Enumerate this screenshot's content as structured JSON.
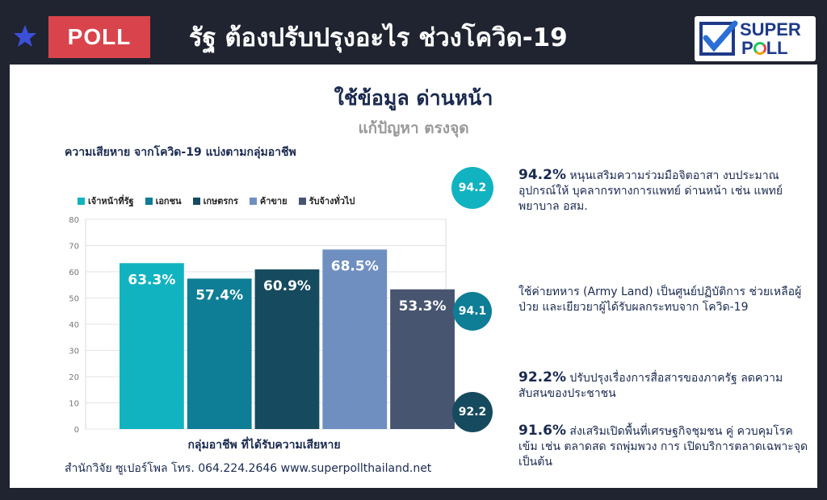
{
  "header": {
    "badge": "POLL",
    "headline": "รัฐ ต้องปรับปรุงอะไร ช่วงโควิด-19",
    "logo_line1": "SUPER",
    "logo_line2_a": "P",
    "logo_line2_b": "LL"
  },
  "panel": {
    "title": "ใช้ข้อมูล ด่านหน้า",
    "subtitle": "แก้ปัญหา ตรงจุด",
    "footer": "สำนักวิจัย ซูเปอร์โพล โทร. 064.224.2646  www.superpollthailand.net"
  },
  "chart_data": {
    "type": "bar",
    "title": "ความเสียหาย จากโควิด-19 แบ่งตามกลุ่มอาชีพ",
    "xlabel": "กลุ่มอาชีพ ที่ได้รับความเสียหาย",
    "ylabel": "",
    "ylim": [
      0,
      80
    ],
    "yticks": [
      0,
      10,
      20,
      30,
      40,
      50,
      60,
      70,
      80
    ],
    "grid": true,
    "legend_position": "top",
    "series": [
      {
        "name": "เจ้าหน้าที่รัฐ",
        "value": 63.3,
        "label": "63.3%",
        "color": "#12b3c0"
      },
      {
        "name": "เอกชน",
        "value": 57.4,
        "label": "57.4%",
        "color": "#0e7d96"
      },
      {
        "name": "เกษตรกร",
        "value": 60.9,
        "label": "60.9%",
        "color": "#164a5e"
      },
      {
        "name": "ค้าขาย",
        "value": 68.5,
        "label": "68.5%",
        "color": "#6f8fc0"
      },
      {
        "name": "รับจ้างทั่วไป",
        "value": 53.3,
        "label": "53.3%",
        "color": "#475570"
      }
    ]
  },
  "stats": [
    {
      "circle": "94.2",
      "color": "#12b3c0",
      "bold": "94.2%",
      "text": " หนุนเสริมความร่วมมือจิตอาสา งบประมาณ อุปกรณ์ให้ บุคลากรทางการแพทย์ ด่านหน้า เช่น แพทย์ พยาบาล อสม."
    },
    {
      "circle": "94.1",
      "color": "#0e7d96",
      "bold": "",
      "text": "ใช้ค่ายทหาร (Army Land) เป็นศูนย์ปฏิบัติการ ช่วยเหลือผู้ป่วย และเยียวยาผู้ได้รับผลกระทบจาก โควิด-19"
    },
    {
      "circle": "92.2",
      "color": "#164a5e",
      "bold": "92.2%",
      "text": " ปรับปรุงเรื่องการสื่อสารของภาครัฐ ลดความสับสนของประชาชน"
    },
    {
      "circle": "",
      "color": "",
      "bold": "91.6%",
      "text": " ส่งเสริมเปิดพื้นที่เศรษฐกิจชุมชน คู่ ควบคุมโรคเข้ม เช่น ตลาดสด รถพุ่มพวง การ เปิดบริการตลาดเฉพาะจุด เป็นต้น"
    }
  ],
  "colors": {
    "background": "#1f2430",
    "accent_red": "#d9444c",
    "brand_blue": "#1e3a8a"
  }
}
